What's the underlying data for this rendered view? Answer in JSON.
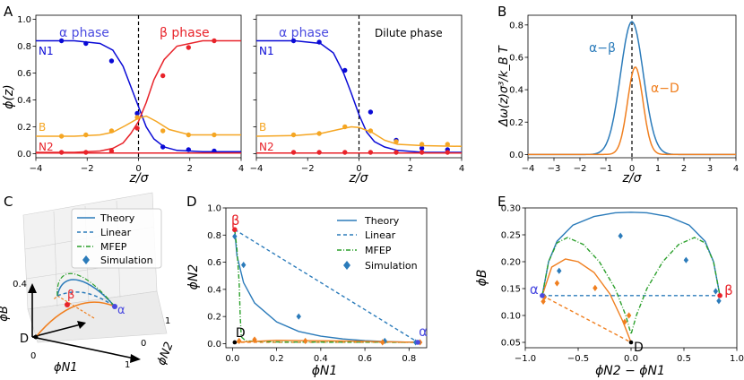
{
  "chart_data": [
    {
      "panel": "A-left",
      "type": "line",
      "panel_label": "A",
      "xlabel": "z/σ",
      "ylabel": "ϕ(z)",
      "xlim": [
        -4,
        4
      ],
      "ylim": [
        -0.03,
        1.03
      ],
      "xticks": [
        "−4",
        "−2",
        "0",
        "2",
        "4"
      ],
      "yticks": [
        "0.0",
        "0.2",
        "0.4",
        "0.6",
        "0.8",
        "1.0"
      ],
      "annotations": {
        "alpha": "α phase",
        "beta": "β phase",
        "n1": "N1",
        "b": "B",
        "n2": "N2"
      },
      "interface_line_x": 0,
      "series": [
        {
          "label": "N1",
          "color": "#0a0ad6",
          "curve": [
            [
              -4,
              0.84
            ],
            [
              -2.5,
              0.84
            ],
            [
              -1.5,
              0.82
            ],
            [
              -1.0,
              0.77
            ],
            [
              -0.6,
              0.65
            ],
            [
              -0.3,
              0.5
            ],
            [
              0,
              0.35
            ],
            [
              0.3,
              0.2
            ],
            [
              0.6,
              0.11
            ],
            [
              1.0,
              0.05
            ],
            [
              1.5,
              0.025
            ],
            [
              2.5,
              0.015
            ],
            [
              4,
              0.015
            ]
          ],
          "points": [
            [
              -3,
              0.84
            ],
            [
              -2.05,
              0.82
            ],
            [
              -1.05,
              0.69
            ],
            [
              -0.05,
              0.3
            ],
            [
              0.95,
              0.05
            ],
            [
              1.95,
              0.03
            ],
            [
              2.95,
              0.02
            ]
          ]
        },
        {
          "label": "β",
          "color": "#e8232a",
          "curve": [
            [
              -4,
              0.01
            ],
            [
              -2.5,
              0.01
            ],
            [
              -1.5,
              0.02
            ],
            [
              -1.0,
              0.04
            ],
            [
              -0.6,
              0.08
            ],
            [
              -0.3,
              0.15
            ],
            [
              0,
              0.24
            ],
            [
              0.3,
              0.38
            ],
            [
              0.6,
              0.55
            ],
            [
              1.0,
              0.7
            ],
            [
              1.5,
              0.8
            ],
            [
              2.5,
              0.84
            ],
            [
              4,
              0.84
            ]
          ],
          "points": [
            [
              -3,
              0.01
            ],
            [
              -2.05,
              0.01
            ],
            [
              -1.05,
              0.02
            ],
            [
              -0.05,
              0.19
            ],
            [
              0.95,
              0.58
            ],
            [
              1.95,
              0.79
            ],
            [
              2.95,
              0.84
            ]
          ]
        },
        {
          "label": "B",
          "color": "#f5a623",
          "curve": [
            [
              -4,
              0.13
            ],
            [
              -2.5,
              0.13
            ],
            [
              -1.5,
              0.14
            ],
            [
              -1.0,
              0.16
            ],
            [
              -0.5,
              0.21
            ],
            [
              0,
              0.265
            ],
            [
              0.3,
              0.28
            ],
            [
              0.7,
              0.24
            ],
            [
              1.2,
              0.18
            ],
            [
              2,
              0.14
            ],
            [
              4,
              0.14
            ]
          ],
          "points": [
            [
              -3,
              0.13
            ],
            [
              -2.05,
              0.14
            ],
            [
              -1.05,
              0.17
            ],
            [
              -0.05,
              0.27
            ],
            [
              0.95,
              0.17
            ],
            [
              1.95,
              0.14
            ],
            [
              2.95,
              0.14
            ]
          ]
        },
        {
          "label": "N2",
          "color": "#e8232a",
          "curve": [
            [
              -4,
              0.005
            ],
            [
              0,
              0.005
            ],
            [
              4,
              0.005
            ]
          ],
          "points": []
        }
      ]
    },
    {
      "panel": "A-right",
      "type": "line",
      "xlabel": "z/σ",
      "xlim": [
        -4,
        4
      ],
      "ylim": [
        -0.03,
        1.03
      ],
      "xticks": [
        "−4",
        "−2",
        "0",
        "2",
        "4"
      ],
      "annotations": {
        "alpha": "α phase",
        "dilute": "Dilute phase",
        "n1": "N1",
        "b": "B",
        "n2": "N2"
      },
      "interface_line_x": 0,
      "series": [
        {
          "label": "N1",
          "color": "#0a0ad6",
          "curve": [
            [
              -4,
              0.84
            ],
            [
              -2.5,
              0.84
            ],
            [
              -1.5,
              0.82
            ],
            [
              -1.0,
              0.75
            ],
            [
              -0.6,
              0.6
            ],
            [
              -0.3,
              0.45
            ],
            [
              0,
              0.29
            ],
            [
              0.3,
              0.16
            ],
            [
              0.6,
              0.09
            ],
            [
              1.0,
              0.05
            ],
            [
              1.5,
              0.025
            ],
            [
              2.5,
              0.01
            ],
            [
              4,
              0.01
            ]
          ],
          "points": [
            [
              -2.55,
              0.84
            ],
            [
              -1.55,
              0.83
            ],
            [
              -0.55,
              0.62
            ],
            [
              0.45,
              0.31
            ],
            [
              1.45,
              0.1
            ],
            [
              2.45,
              0.04
            ],
            [
              3.45,
              0.03
            ]
          ]
        },
        {
          "label": "N2",
          "color": "#e8232a",
          "curve": [
            [
              -4,
              0.005
            ],
            [
              0,
              0.005
            ],
            [
              4,
              0.005
            ]
          ],
          "points": [
            [
              -2.55,
              0.01
            ],
            [
              -1.55,
              0.01
            ],
            [
              -0.55,
              0.01
            ],
            [
              0.45,
              0.01
            ],
            [
              1.45,
              0.01
            ],
            [
              2.45,
              0.01
            ],
            [
              3.45,
              0.01
            ]
          ]
        },
        {
          "label": "B",
          "color": "#f5a623",
          "curve": [
            [
              -4,
              0.13
            ],
            [
              -2.5,
              0.135
            ],
            [
              -1.5,
              0.15
            ],
            [
              -0.8,
              0.18
            ],
            [
              -0.3,
              0.2
            ],
            [
              0,
              0.195
            ],
            [
              0.5,
              0.16
            ],
            [
              1.0,
              0.1
            ],
            [
              1.5,
              0.07
            ],
            [
              2.5,
              0.06
            ],
            [
              4,
              0.055
            ]
          ],
          "points": [
            [
              -2.55,
              0.14
            ],
            [
              -1.55,
              0.15
            ],
            [
              -0.55,
              0.2
            ],
            [
              0.45,
              0.17
            ],
            [
              1.45,
              0.09
            ],
            [
              2.45,
              0.07
            ],
            [
              3.45,
              0.07
            ]
          ]
        }
      ]
    },
    {
      "panel": "B",
      "type": "line",
      "panel_label": "B",
      "xlabel": "z/σ",
      "ylabel": "Δω(z)σ³/k_B T",
      "xlim": [
        -4,
        4
      ],
      "ylim": [
        -0.02,
        0.86
      ],
      "xticks": [
        "−4",
        "−3",
        "−2",
        "−1",
        "0",
        "1",
        "2",
        "3",
        "4"
      ],
      "yticks": [
        "0.0",
        "0.2",
        "0.4",
        "0.6",
        "0.8"
      ],
      "annotations": {
        "ab": "α−β",
        "ad": "α−D"
      },
      "series": [
        {
          "label": "α−β",
          "color": "#2b7bba",
          "peak_x": 0.0,
          "peak_y": 0.82,
          "width": 0.62
        },
        {
          "label": "α−D",
          "color": "#f07f1f",
          "peak_x": 0.13,
          "peak_y": 0.54,
          "width": 0.42
        }
      ]
    },
    {
      "panel": "C",
      "type": "line",
      "panel_label": "C",
      "xlabel": "ϕN1",
      "ylabel": "ϕN2",
      "zlabel": "ϕB",
      "ticks": {
        "x": [
          "0",
          "1"
        ],
        "y": [
          "0",
          "1"
        ],
        "z": [
          "0.4"
        ]
      },
      "labels": {
        "beta": "β",
        "alpha": "α",
        "d": "D"
      },
      "legend": [
        "Theory",
        "Linear",
        "MFEP",
        "Simulation"
      ]
    },
    {
      "panel": "D",
      "type": "line",
      "panel_label": "D",
      "xlabel": "ϕN1",
      "ylabel": "ϕN2",
      "xlim": [
        -0.03,
        0.88
      ],
      "ylim": [
        -0.03,
        1.0
      ],
      "xticks": [
        0,
        0.2,
        0.4,
        0.6,
        0.8
      ],
      "xtick_labels": [
        "0.0",
        "0.2",
        "0.4",
        "0.6",
        "0.8"
      ],
      "yticks": [
        0,
        0.2,
        0.4,
        0.6,
        0.8,
        1.0
      ],
      "ytick_labels": [
        "0.0",
        "0.2",
        "0.4",
        "0.6",
        "0.8",
        "1.0"
      ],
      "labels": {
        "beta": "β",
        "alpha": "α",
        "d": "D"
      },
      "legend": [
        "Theory",
        "Linear",
        "MFEP",
        "Simulation"
      ],
      "points": {
        "alpha": [
          0.84,
          0.01
        ],
        "beta": [
          0.01,
          0.84
        ],
        "d": [
          0.01,
          0.01
        ]
      },
      "series": [
        {
          "label": "Theory",
          "color": "#2b7bba",
          "style": "solid",
          "x": [
            0.01,
            0.02,
            0.05,
            0.1,
            0.2,
            0.3,
            0.4,
            0.5,
            0.6,
            0.7,
            0.8,
            0.84
          ],
          "y": [
            0.84,
            0.65,
            0.45,
            0.3,
            0.16,
            0.09,
            0.055,
            0.035,
            0.022,
            0.015,
            0.011,
            0.01
          ]
        },
        {
          "label": "Linear",
          "color": "#2b7bba",
          "style": "dashed",
          "x": [
            0.01,
            0.84
          ],
          "y": [
            0.84,
            0.01
          ]
        },
        {
          "label": "Linear α−D",
          "color": "#f07f1f",
          "style": "dashed",
          "x": [
            0.01,
            0.84
          ],
          "y": [
            0.01,
            0.01
          ]
        },
        {
          "label": "MFEP",
          "color": "#2ca02c",
          "style": "dashdot",
          "x": [
            0.01,
            0.02,
            0.03,
            0.035,
            0.04,
            0.06,
            0.2,
            0.5,
            0.84
          ],
          "y": [
            0.84,
            0.7,
            0.45,
            0.2,
            0.05,
            0.02,
            0.012,
            0.011,
            0.01
          ]
        },
        {
          "label": "Theory α−D",
          "color": "#f07f1f",
          "style": "solid",
          "x": [
            0.01,
            0.2,
            0.5,
            0.84
          ],
          "y": [
            0.01,
            0.025,
            0.02,
            0.01
          ]
        },
        {
          "label": "Simulation",
          "color": "#2b7bba",
          "style": "diamond",
          "x": [
            0.01,
            0.05,
            0.3,
            0.69,
            0.83
          ],
          "y": [
            0.79,
            0.58,
            0.2,
            0.02,
            0.01
          ]
        },
        {
          "label": "Simulation α−D",
          "color": "#f07f1f",
          "style": "diamond",
          "x": [
            0.03,
            0.1,
            0.33,
            0.68,
            0.85
          ],
          "y": [
            0.02,
            0.03,
            0.02,
            0.01,
            0.01
          ]
        }
      ]
    },
    {
      "panel": "E",
      "type": "line",
      "panel_label": "E",
      "xlabel": "ϕN2 − ϕN1",
      "ylabel": "ϕB",
      "xlim": [
        -1.0,
        1.0
      ],
      "ylim": [
        0.04,
        0.3
      ],
      "xticks": [
        -1.0,
        -0.5,
        0.0,
        0.5,
        1.0
      ],
      "xtick_labels": [
        "−1.0",
        "−0.5",
        "0.0",
        "0.5",
        "1.0"
      ],
      "yticks": [
        0.05,
        0.1,
        0.15,
        0.2,
        0.25,
        0.3
      ],
      "ytick_labels": [
        "0.05",
        "0.10",
        "0.15",
        "0.20",
        "0.25",
        "0.30"
      ],
      "labels": {
        "alpha": "α",
        "beta": "β",
        "d": "D"
      },
      "points": {
        "alpha": [
          -0.84,
          0.137
        ],
        "beta": [
          0.84,
          0.137
        ],
        "d": [
          0.0,
          0.05
        ]
      },
      "series": [
        {
          "label": "Theory",
          "color": "#2b7bba",
          "style": "solid",
          "x": [
            -0.84,
            -0.78,
            -0.7,
            -0.55,
            -0.35,
            -0.15,
            0,
            0.15,
            0.35,
            0.55,
            0.7,
            0.78,
            0.84
          ],
          "y": [
            0.137,
            0.2,
            0.238,
            0.268,
            0.284,
            0.291,
            0.292,
            0.291,
            0.284,
            0.268,
            0.238,
            0.2,
            0.137
          ]
        },
        {
          "label": "Linear",
          "color": "#2b7bba",
          "style": "dashed",
          "x": [
            -0.84,
            0.84
          ],
          "y": [
            0.137,
            0.137
          ]
        },
        {
          "label": "Linear α−D",
          "color": "#f07f1f",
          "style": "dashed",
          "x": [
            -0.84,
            0.0
          ],
          "y": [
            0.137,
            0.05
          ]
        },
        {
          "label": "Theory α−D",
          "color": "#f07f1f",
          "style": "solid",
          "x": [
            -0.84,
            -0.75,
            -0.62,
            -0.5,
            -0.35,
            -0.2,
            -0.08,
            0.0
          ],
          "y": [
            0.137,
            0.19,
            0.205,
            0.2,
            0.18,
            0.14,
            0.09,
            0.05
          ]
        },
        {
          "label": "MFEP",
          "color": "#2ca02c",
          "style": "dashdot",
          "x": [
            -0.84,
            -0.78,
            -0.7,
            -0.6,
            -0.45,
            -0.3,
            -0.15,
            -0.05,
            0.0,
            0.05,
            0.15,
            0.3,
            0.45,
            0.6,
            0.7,
            0.78,
            0.84
          ],
          "y": [
            0.137,
            0.2,
            0.235,
            0.245,
            0.232,
            0.2,
            0.15,
            0.1,
            0.065,
            0.1,
            0.15,
            0.2,
            0.232,
            0.245,
            0.235,
            0.2,
            0.137
          ]
        },
        {
          "label": "Simulation",
          "color": "#2b7bba",
          "style": "diamond",
          "x": [
            -0.82,
            -0.68,
            -0.1,
            0.52,
            0.8,
            0.83
          ],
          "y": [
            0.135,
            0.183,
            0.248,
            0.203,
            0.145,
            0.127
          ]
        },
        {
          "label": "Simulation α−D",
          "color": "#f07f1f",
          "style": "diamond",
          "x": [
            -0.83,
            -0.82,
            -0.7,
            -0.34,
            -0.06,
            -0.02
          ],
          "y": [
            0.126,
            0.134,
            0.16,
            0.151,
            0.088,
            0.1
          ]
        }
      ]
    }
  ]
}
